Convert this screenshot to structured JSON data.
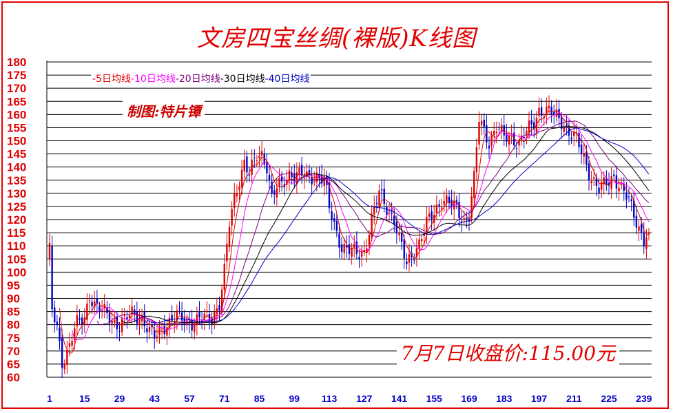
{
  "title": "文房四宝丝绸(裸版)K线图",
  "author": "制图:特片镡",
  "close_note": "7月7日收盘价:115.00元",
  "legend": [
    {
      "label": "-5日均线",
      "color": "#e00000"
    },
    {
      "label": "-10日均线",
      "color": "#ff00ff"
    },
    {
      "label": "-20日均线",
      "color": "#800080"
    },
    {
      "label": "-30日均线",
      "color": "#000000"
    },
    {
      "label": "-40日均线",
      "color": "#0000cc"
    }
  ],
  "chart_data": {
    "type": "candlestick",
    "title": "文房四宝丝绸(裸版)K线图",
    "ylim": [
      60,
      180
    ],
    "y_ticks": [
      "60",
      "65",
      "70",
      "75",
      "80",
      "85",
      "90",
      "95",
      "100",
      "105",
      "110",
      "115",
      "120",
      "125",
      "130",
      "135",
      "140",
      "145",
      "150",
      "155",
      "160",
      "165",
      "170",
      "175",
      "180"
    ],
    "x_ticks": [
      "1",
      "15",
      "29",
      "43",
      "57",
      "71",
      "85",
      "99",
      "113",
      "127",
      "141",
      "155",
      "169",
      "183",
      "197",
      "211",
      "225",
      "239"
    ],
    "xlim": [
      1,
      241
    ],
    "up_color": "#e00000",
    "down_color": "#0000cc",
    "key_closes": [
      {
        "x": 1,
        "v": 108
      },
      {
        "x": 2,
        "v": 85
      },
      {
        "x": 4,
        "v": 78
      },
      {
        "x": 6,
        "v": 66
      },
      {
        "x": 8,
        "v": 70
      },
      {
        "x": 10,
        "v": 76
      },
      {
        "x": 12,
        "v": 80
      },
      {
        "x": 15,
        "v": 82
      },
      {
        "x": 17,
        "v": 92
      },
      {
        "x": 19,
        "v": 88
      },
      {
        "x": 22,
        "v": 85
      },
      {
        "x": 26,
        "v": 82
      },
      {
        "x": 29,
        "v": 80
      },
      {
        "x": 34,
        "v": 84
      },
      {
        "x": 38,
        "v": 83
      },
      {
        "x": 41,
        "v": 77
      },
      {
        "x": 43,
        "v": 75
      },
      {
        "x": 47,
        "v": 80
      },
      {
        "x": 52,
        "v": 83
      },
      {
        "x": 57,
        "v": 81
      },
      {
        "x": 62,
        "v": 82
      },
      {
        "x": 66,
        "v": 83
      },
      {
        "x": 69,
        "v": 88
      },
      {
        "x": 71,
        "v": 100
      },
      {
        "x": 73,
        "v": 118
      },
      {
        "x": 75,
        "v": 128
      },
      {
        "x": 77,
        "v": 136
      },
      {
        "x": 79,
        "v": 142
      },
      {
        "x": 81,
        "v": 137
      },
      {
        "x": 84,
        "v": 144
      },
      {
        "x": 86,
        "v": 145
      },
      {
        "x": 88,
        "v": 141
      },
      {
        "x": 90,
        "v": 128
      },
      {
        "x": 92,
        "v": 132
      },
      {
        "x": 94,
        "v": 133
      },
      {
        "x": 97,
        "v": 138
      },
      {
        "x": 100,
        "v": 137
      },
      {
        "x": 104,
        "v": 136
      },
      {
        "x": 108,
        "v": 137
      },
      {
        "x": 111,
        "v": 135
      },
      {
        "x": 113,
        "v": 124
      },
      {
        "x": 115,
        "v": 118
      },
      {
        "x": 118,
        "v": 110
      },
      {
        "x": 121,
        "v": 108
      },
      {
        "x": 124,
        "v": 107
      },
      {
        "x": 127,
        "v": 108
      },
      {
        "x": 130,
        "v": 120
      },
      {
        "x": 133,
        "v": 130
      },
      {
        "x": 136,
        "v": 125
      },
      {
        "x": 139,
        "v": 120
      },
      {
        "x": 141,
        "v": 112
      },
      {
        "x": 144,
        "v": 103
      },
      {
        "x": 146,
        "v": 107
      },
      {
        "x": 149,
        "v": 111
      },
      {
        "x": 152,
        "v": 118
      },
      {
        "x": 155,
        "v": 123
      },
      {
        "x": 158,
        "v": 128
      },
      {
        "x": 161,
        "v": 126
      },
      {
        "x": 164,
        "v": 124
      },
      {
        "x": 167,
        "v": 120
      },
      {
        "x": 169,
        "v": 122
      },
      {
        "x": 171,
        "v": 135
      },
      {
        "x": 173,
        "v": 158
      },
      {
        "x": 175,
        "v": 154
      },
      {
        "x": 177,
        "v": 150
      },
      {
        "x": 180,
        "v": 155
      },
      {
        "x": 183,
        "v": 151
      },
      {
        "x": 186,
        "v": 152
      },
      {
        "x": 189,
        "v": 149
      },
      {
        "x": 192,
        "v": 153
      },
      {
        "x": 195,
        "v": 157
      },
      {
        "x": 197,
        "v": 162
      },
      {
        "x": 200,
        "v": 161
      },
      {
        "x": 203,
        "v": 160
      },
      {
        "x": 206,
        "v": 158
      },
      {
        "x": 209,
        "v": 153
      },
      {
        "x": 212,
        "v": 150
      },
      {
        "x": 215,
        "v": 144
      },
      {
        "x": 218,
        "v": 136
      },
      {
        "x": 221,
        "v": 131
      },
      {
        "x": 224,
        "v": 134
      },
      {
        "x": 227,
        "v": 137
      },
      {
        "x": 230,
        "v": 131
      },
      {
        "x": 233,
        "v": 127
      },
      {
        "x": 236,
        "v": 120
      },
      {
        "x": 239,
        "v": 112
      },
      {
        "x": 241,
        "v": 115
      }
    ],
    "last_close": 115.0
  }
}
